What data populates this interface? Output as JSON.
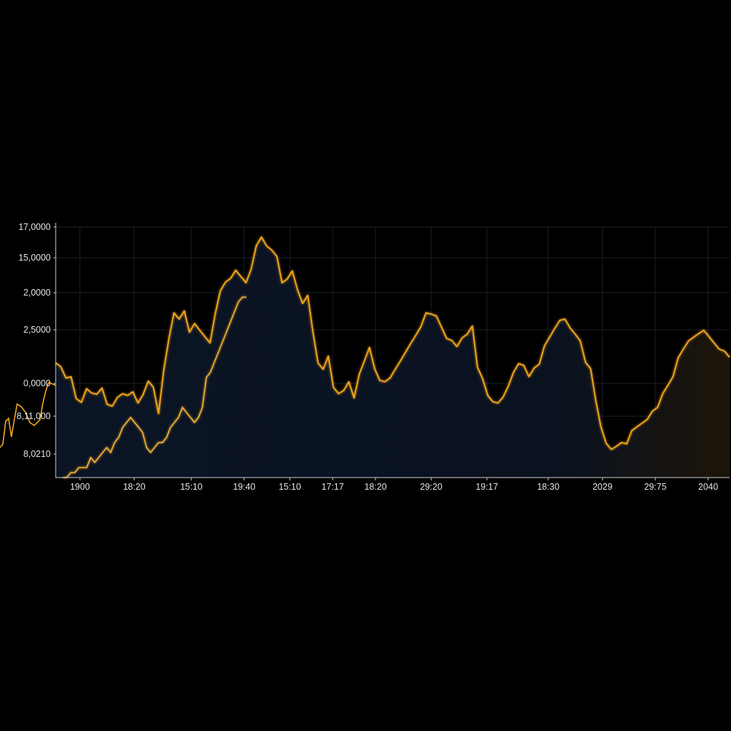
{
  "colors": {
    "background": "#000000",
    "line_main": "#f5a81c",
    "line_secondary": "#f2b233",
    "fill_area": "#0a1220",
    "fill_area_right": "#1c1408",
    "axis": "#cfcfcf",
    "grid": "#1a1f2a",
    "text": "#e6e6e6"
  },
  "chart_data": {
    "type": "area",
    "title": "",
    "xlabel": "",
    "ylabel": "",
    "grid": true,
    "legend": "none",
    "y_tick_labels": [
      "17,0000",
      "15,0000",
      "2,0000",
      "2,5000",
      "0,0000",
      "8,11,000",
      "8,0210"
    ],
    "x_tick_labels": [
      "1900",
      "18:20",
      "15:10",
      "19:40",
      "15:10",
      "17:17",
      "18:20",
      "29:20",
      "19:17",
      "18:30",
      "2029",
      "29:75",
      "2040"
    ],
    "ylim_index": [
      0,
      100
    ],
    "series": [
      {
        "values": [
          45,
          44,
          40,
          41,
          31,
          30,
          36,
          33,
          33,
          36,
          30,
          28,
          32,
          34,
          32,
          34,
          30,
          34,
          38,
          36,
          26,
          42,
          55,
          66,
          64,
          66,
          58,
          62,
          58,
          56,
          54,
          66,
          74,
          78,
          80,
          82,
          80,
          78,
          84,
          92,
          96,
          93,
          90,
          88,
          78,
          80,
          82,
          75,
          70,
          72,
          58,
          46,
          44,
          48,
          36,
          34,
          34,
          38,
          32,
          42,
          46,
          52,
          44,
          38,
          38,
          40,
          44,
          46,
          50,
          54,
          56,
          60,
          66,
          66,
          64,
          60,
          56,
          54,
          52,
          56,
          58,
          60,
          44,
          40,
          32,
          30,
          30,
          33,
          36,
          42,
          46,
          44,
          40,
          44,
          46,
          52,
          56,
          60,
          62,
          63,
          60,
          58,
          54,
          46,
          44,
          30,
          20,
          14,
          12,
          12,
          14,
          14,
          18,
          20,
          22,
          24,
          26,
          28,
          34,
          36,
          40,
          48,
          52,
          54,
          56,
          58,
          58,
          56,
          54,
          52,
          50,
          48
        ]
      },
      {
        "values": [
          0,
          0,
          2,
          2,
          4,
          4,
          4,
          8,
          6,
          8,
          10,
          12,
          10,
          14,
          16,
          20,
          22,
          24,
          22,
          20,
          18,
          12,
          10,
          12,
          14,
          14,
          16,
          20,
          22,
          24,
          28,
          26,
          24,
          22,
          24,
          28,
          40,
          42,
          46,
          50,
          54,
          58,
          62,
          66,
          70,
          72,
          72
        ]
      }
    ]
  }
}
